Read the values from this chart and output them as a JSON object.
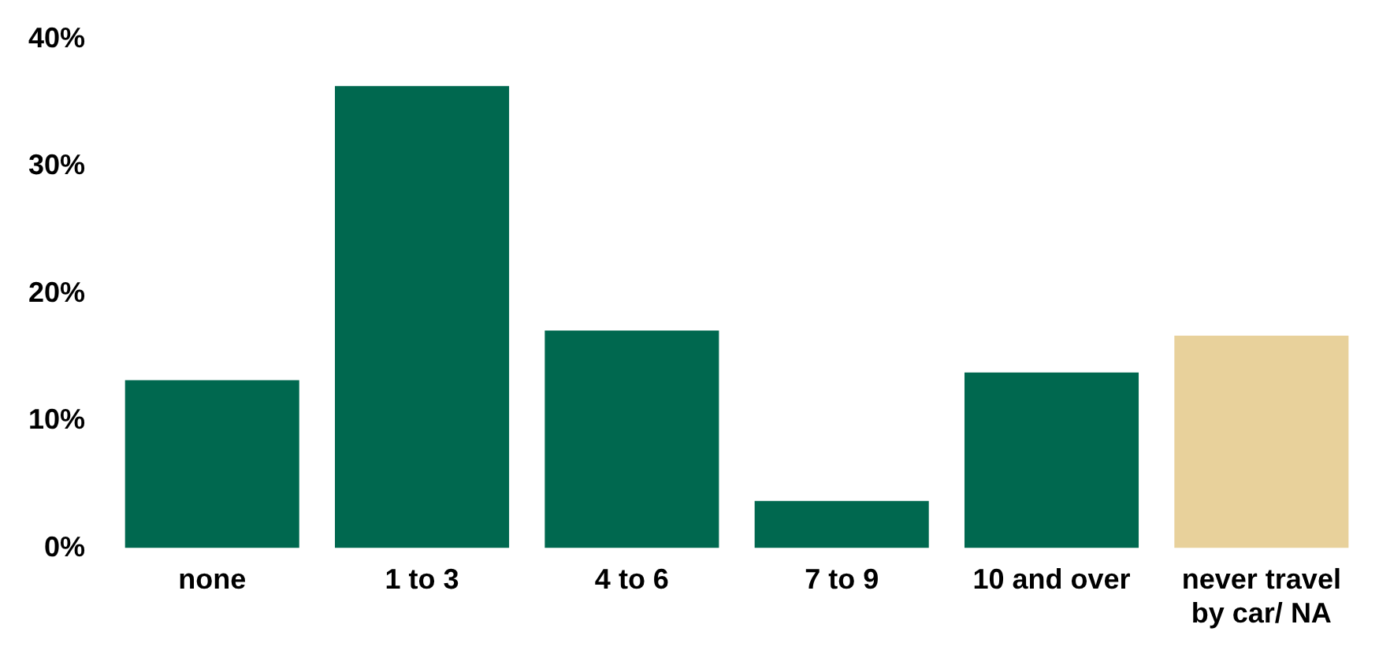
{
  "chart_data": {
    "type": "bar",
    "categories": [
      "none",
      "1 to 3",
      "4 to 6",
      "7 to 9",
      "10 and over",
      "never travel by car/ NA"
    ],
    "values": [
      13.2,
      36.3,
      17.1,
      3.7,
      13.8,
      16.7
    ],
    "colors": [
      "#00684f",
      "#00684f",
      "#00684f",
      "#00684f",
      "#00684f",
      "#e8d19b"
    ],
    "ylim": [
      0,
      40
    ],
    "yticks": [
      {
        "value": 0,
        "label": "0%"
      },
      {
        "value": 10,
        "label": "10%"
      },
      {
        "value": 20,
        "label": "20%"
      },
      {
        "value": 30,
        "label": "30%"
      },
      {
        "value": 40,
        "label": "40%"
      }
    ],
    "grid": false,
    "legend": false
  }
}
